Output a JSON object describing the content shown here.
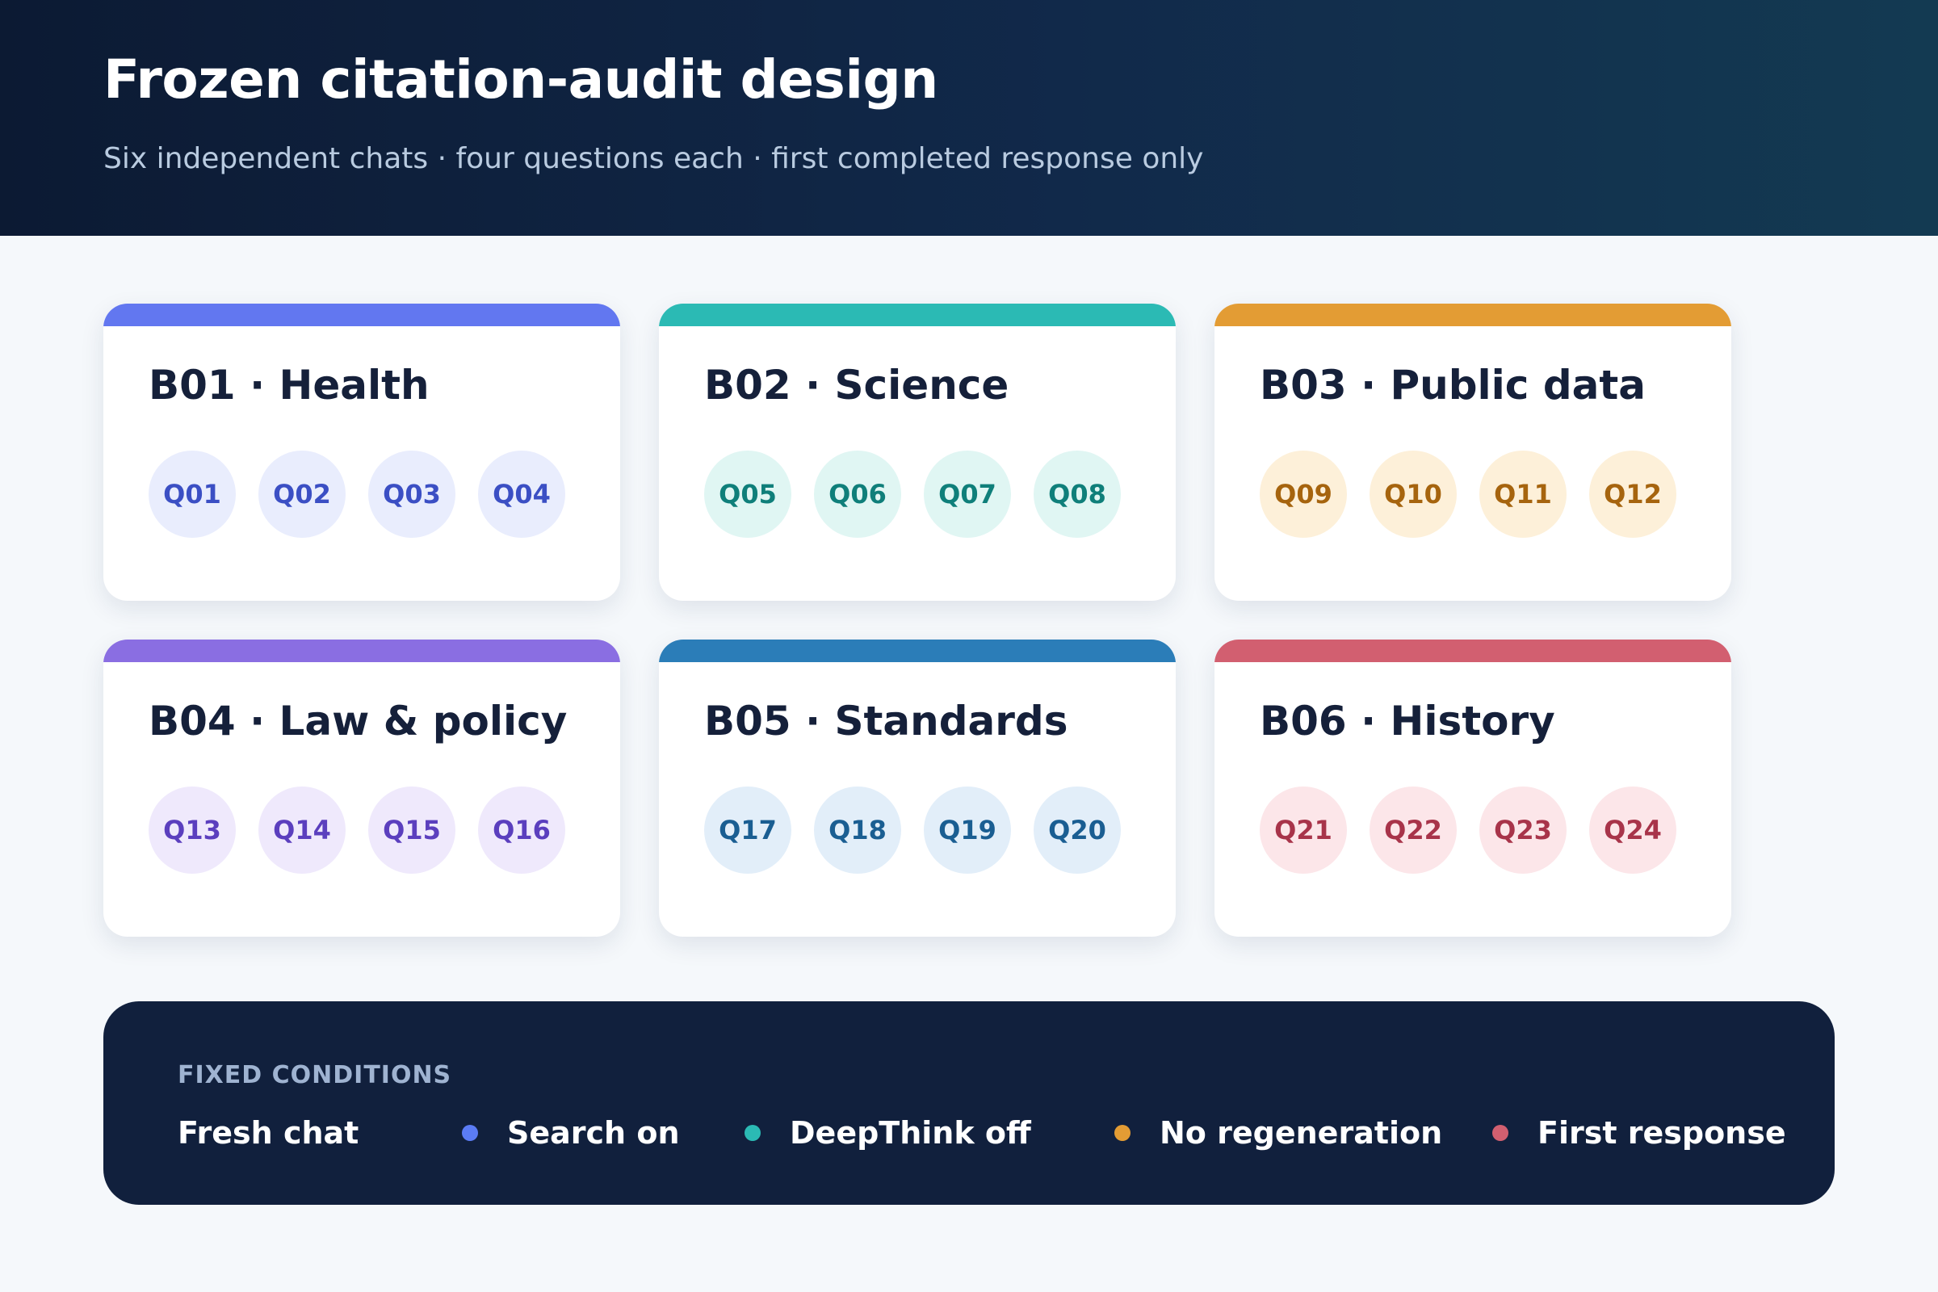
{
  "header": {
    "title": "Frozen citation-audit design",
    "subtitle": "Six independent chats · four questions each · first completed response only"
  },
  "cards": [
    {
      "title": "B01 · Health",
      "accent": "#6277f0",
      "chip_bg": "#e9edfd",
      "chip_fg": "#3b4fc4",
      "questions": [
        "Q01",
        "Q02",
        "Q03",
        "Q04"
      ]
    },
    {
      "title": "B02 · Science",
      "accent": "#2bbab4",
      "chip_bg": "#e0f6f3",
      "chip_fg": "#0f7f7a",
      "questions": [
        "Q05",
        "Q06",
        "Q07",
        "Q08"
      ]
    },
    {
      "title": "B03 · Public data",
      "accent": "#e39c34",
      "chip_bg": "#fdf0d9",
      "chip_fg": "#a6640e",
      "questions": [
        "Q09",
        "Q10",
        "Q11",
        "Q12"
      ]
    },
    {
      "title": "B04 · Law & policy",
      "accent": "#8a6ee2",
      "chip_bg": "#efe9fc",
      "chip_fg": "#5b3fbe",
      "questions": [
        "Q13",
        "Q14",
        "Q15",
        "Q16"
      ]
    },
    {
      "title": "B05 · Standards",
      "accent": "#2b7db8",
      "chip_bg": "#e2eef9",
      "chip_fg": "#1a5e92",
      "questions": [
        "Q17",
        "Q18",
        "Q19",
        "Q20"
      ]
    },
    {
      "title": "B06 · History",
      "accent": "#d25f70",
      "chip_bg": "#fce6e9",
      "chip_fg": "#a8344a",
      "questions": [
        "Q21",
        "Q22",
        "Q23",
        "Q24"
      ]
    }
  ],
  "conditions": {
    "heading": "FIXED CONDITIONS",
    "items": [
      {
        "label": "Fresh chat",
        "dot": null
      },
      {
        "label": "Search on",
        "dot": "#5b7cf5"
      },
      {
        "label": "DeepThink off",
        "dot": "#2bbab4"
      },
      {
        "label": "No regeneration",
        "dot": "#e39c34"
      },
      {
        "label": "First response",
        "dot": "#d25f70"
      }
    ]
  }
}
